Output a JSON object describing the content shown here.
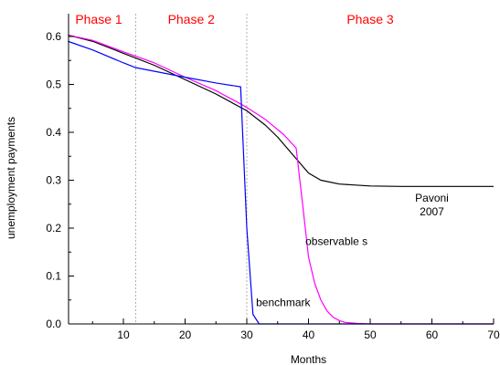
{
  "chart_data": {
    "type": "line",
    "title": "",
    "xlabel": "Months",
    "ylabel": "unemployment payments",
    "xlim": [
      1,
      70
    ],
    "ylim": [
      0,
      0.65
    ],
    "xticks": [
      10,
      20,
      30,
      40,
      50,
      60,
      70
    ],
    "yticks": [
      0.0,
      0.1,
      0.2,
      0.3,
      0.4,
      0.5,
      0.6
    ],
    "xtick_labels": [
      "10",
      "20",
      "30",
      "40",
      "50",
      "60",
      "70"
    ],
    "ytick_labels": [
      "0.0",
      "0.1",
      "0.2",
      "0.3",
      "0.4",
      "0.5",
      "0.6"
    ],
    "grid": false,
    "legend": "none",
    "phase_lines": [
      12,
      30
    ],
    "phase_line_color": "#b0b0b0",
    "phases": [
      {
        "label": "Phase 1",
        "x": 6
      },
      {
        "label": "Phase 2",
        "x": 21
      },
      {
        "label": "Phase 3",
        "x": 50
      }
    ],
    "phase_color": "#ff0000",
    "series": [
      {
        "name": "Pavoni 2007",
        "color": "#000000",
        "x": [
          1,
          5,
          10,
          15,
          20,
          25,
          30,
          33,
          35,
          37,
          39,
          40,
          42,
          45,
          50,
          55,
          60,
          65,
          70
        ],
        "values": [
          0.603,
          0.59,
          0.565,
          0.54,
          0.51,
          0.48,
          0.445,
          0.415,
          0.39,
          0.36,
          0.33,
          0.315,
          0.3,
          0.292,
          0.288,
          0.287,
          0.287,
          0.287,
          0.287
        ]
      },
      {
        "name": "observable s",
        "color": "#ff00ff",
        "x": [
          1,
          5,
          10,
          15,
          20,
          25,
          30,
          33,
          36,
          38,
          39,
          40,
          41,
          42,
          43,
          44,
          45,
          46,
          48,
          50,
          55,
          60,
          65,
          70
        ],
        "values": [
          0.603,
          0.592,
          0.568,
          0.545,
          0.515,
          0.487,
          0.452,
          0.427,
          0.395,
          0.367,
          0.255,
          0.14,
          0.085,
          0.05,
          0.027,
          0.014,
          0.007,
          0.003,
          0.001,
          0,
          0,
          0,
          0,
          0
        ]
      },
      {
        "name": "benchmark",
        "color": "#0000ff",
        "x": [
          1,
          5,
          10,
          12,
          20,
          25,
          29,
          30,
          31,
          32,
          35,
          40,
          50,
          60,
          70
        ],
        "values": [
          0.59,
          0.572,
          0.545,
          0.535,
          0.515,
          0.503,
          0.495,
          0.2,
          0.02,
          0,
          0,
          0,
          0,
          0,
          0
        ]
      }
    ],
    "annotations": [
      {
        "lines": [
          "Pavoni",
          "2007"
        ],
        "x": 60,
        "y": 0.255,
        "anchor": "middle"
      },
      {
        "lines": [
          "observable s"
        ],
        "x": 39.5,
        "y": 0.165,
        "anchor": "start"
      },
      {
        "lines": [
          "benchmark"
        ],
        "x": 31.5,
        "y": 0.037,
        "anchor": "start"
      }
    ]
  }
}
